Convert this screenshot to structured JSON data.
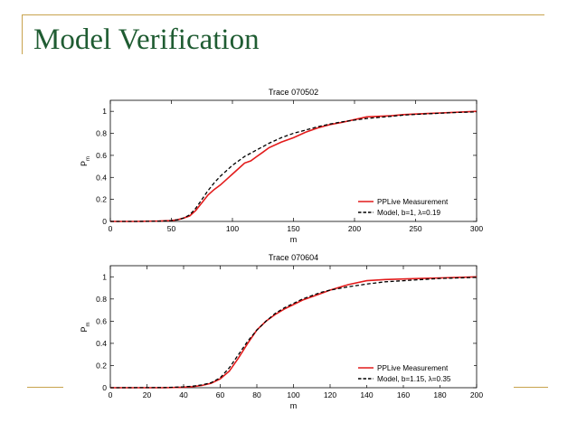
{
  "slide": {
    "title": "Model Verification"
  },
  "colors": {
    "title": "#1f5c32",
    "accent_rule": "#c8a34e",
    "measurement": "#e21b1b",
    "model": "#000000"
  },
  "chart_data": [
    {
      "type": "line",
      "title": "Trace 070502",
      "xlabel": "m",
      "ylabel": "P",
      "ylabel_sub": "m",
      "xlim": [
        0,
        300
      ],
      "ylim": [
        0,
        1.1
      ],
      "xticks": [
        0,
        50,
        100,
        150,
        200,
        250,
        300
      ],
      "yticks": [
        0,
        0.2,
        0.4,
        0.6,
        0.8,
        1
      ],
      "ytick_labels": [
        "0",
        "0.2",
        "0.4",
        "0.6",
        "0.8",
        "1"
      ],
      "legend_position": "bottom-right",
      "series": [
        {
          "name": "PPLive Measurement",
          "color": "#e21b1b",
          "style": "solid",
          "x": [
            0,
            20,
            40,
            50,
            55,
            60,
            65,
            70,
            75,
            80,
            85,
            90,
            95,
            100,
            105,
            110,
            115,
            120,
            125,
            130,
            140,
            150,
            160,
            170,
            180,
            190,
            200,
            210,
            220,
            230,
            240,
            250,
            260,
            270,
            280,
            290,
            300
          ],
          "y": [
            0,
            0,
            0.003,
            0.008,
            0.015,
            0.03,
            0.05,
            0.1,
            0.17,
            0.24,
            0.29,
            0.33,
            0.38,
            0.43,
            0.48,
            0.53,
            0.55,
            0.59,
            0.63,
            0.67,
            0.72,
            0.76,
            0.81,
            0.85,
            0.88,
            0.9,
            0.925,
            0.95,
            0.955,
            0.96,
            0.97,
            0.975,
            0.98,
            0.985,
            0.99,
            0.995,
            1.0
          ]
        },
        {
          "name": "Model, b=1, λ=0.19",
          "color": "#000000",
          "style": "dashed",
          "x": [
            0,
            20,
            40,
            50,
            55,
            60,
            65,
            70,
            75,
            80,
            85,
            90,
            95,
            100,
            105,
            110,
            115,
            120,
            125,
            130,
            140,
            150,
            160,
            170,
            180,
            190,
            200,
            210,
            220,
            230,
            240,
            250,
            260,
            270,
            280,
            290,
            300
          ],
          "y": [
            0,
            0,
            0.002,
            0.008,
            0.015,
            0.03,
            0.06,
            0.12,
            0.2,
            0.28,
            0.35,
            0.41,
            0.46,
            0.51,
            0.55,
            0.59,
            0.62,
            0.65,
            0.68,
            0.71,
            0.76,
            0.8,
            0.83,
            0.86,
            0.885,
            0.905,
            0.92,
            0.935,
            0.945,
            0.955,
            0.965,
            0.972,
            0.978,
            0.983,
            0.988,
            0.992,
            0.995
          ]
        }
      ]
    },
    {
      "type": "line",
      "title": "Trace 070604",
      "xlabel": "m",
      "ylabel": "P",
      "ylabel_sub": "m",
      "xlim": [
        0,
        200
      ],
      "ylim": [
        0,
        1.1
      ],
      "xticks": [
        0,
        20,
        40,
        60,
        80,
        100,
        120,
        140,
        160,
        180,
        200
      ],
      "yticks": [
        0,
        0.2,
        0.4,
        0.6,
        0.8,
        1
      ],
      "ytick_labels": [
        "0",
        "0.2",
        "0.4",
        "0.6",
        "0.8",
        "1"
      ],
      "legend_position": "bottom-right",
      "series": [
        {
          "name": "PPLive Measurement",
          "color": "#e21b1b",
          "style": "solid",
          "x": [
            0,
            30,
            40,
            45,
            50,
            55,
            60,
            65,
            70,
            75,
            80,
            85,
            90,
            95,
            100,
            105,
            110,
            115,
            120,
            130,
            140,
            150,
            160,
            170,
            180,
            190,
            200
          ],
          "y": [
            0,
            0,
            0.005,
            0.01,
            0.02,
            0.04,
            0.08,
            0.15,
            0.27,
            0.4,
            0.52,
            0.6,
            0.66,
            0.71,
            0.75,
            0.79,
            0.82,
            0.85,
            0.88,
            0.93,
            0.965,
            0.975,
            0.98,
            0.985,
            0.99,
            0.995,
            1.0
          ]
        },
        {
          "name": "Model, b=1.15, λ=0.35",
          "color": "#000000",
          "style": "dashed",
          "x": [
            0,
            30,
            40,
            45,
            50,
            55,
            60,
            65,
            70,
            75,
            80,
            85,
            90,
            95,
            100,
            105,
            110,
            115,
            120,
            130,
            140,
            150,
            160,
            170,
            180,
            190,
            200
          ],
          "y": [
            0,
            0.002,
            0.008,
            0.014,
            0.025,
            0.045,
            0.09,
            0.18,
            0.3,
            0.42,
            0.52,
            0.6,
            0.67,
            0.72,
            0.76,
            0.8,
            0.83,
            0.86,
            0.88,
            0.91,
            0.935,
            0.955,
            0.965,
            0.975,
            0.985,
            0.99,
            0.995
          ]
        }
      ]
    }
  ]
}
